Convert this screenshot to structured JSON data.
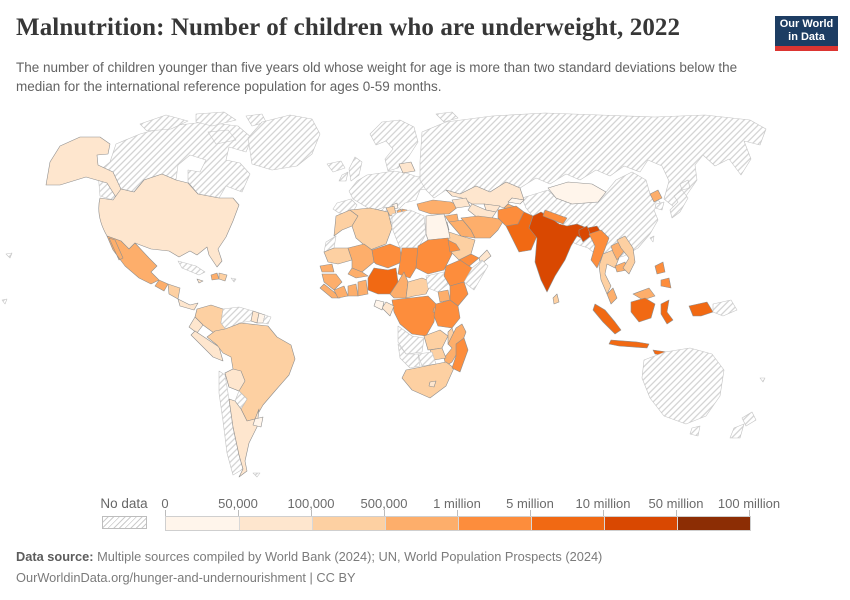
{
  "header": {
    "title": "Malnutrition: Number of children who are underweight, 2022",
    "subtitle": "The number of children younger than five years old whose weight for age is more than two standard deviations below the median for the international reference population for ages 0-59 months."
  },
  "logo": {
    "line1": "Our World",
    "line2": "in Data",
    "bg_color": "#1d3d63",
    "accent_color": "#dc3531"
  },
  "legend": {
    "no_data_label": "No data",
    "tick_labels": [
      "0",
      "50,000",
      "100,000",
      "500,000",
      "1 million",
      "5 million",
      "10 million",
      "50 million",
      "100 million"
    ],
    "bin_colors": [
      "#fff5eb",
      "#fee6ce",
      "#fdd0a2",
      "#fdae6b",
      "#fd8d3c",
      "#f16913",
      "#d94801",
      "#8c2d04"
    ]
  },
  "footer": {
    "source_label": "Data source:",
    "source_text": " Multiple sources compiled by World Bank (2024); UN, World Population Prospects (2024)",
    "link_text": "OurWorldinData.org/hunger-and-undernourishment | CC BY"
  },
  "map": {
    "no_data_value": "x",
    "countries": {
      "united-states": 1,
      "canada": "x",
      "greenland": "x",
      "iceland": "x",
      "mexico": 3,
      "guatemala": 3,
      "honduras-nicaragua": 2,
      "costa-rica-panama": 1,
      "cuba": "x",
      "jamaica": 1,
      "haiti": 3,
      "dominican-republic": 2,
      "puerto-rico": "x",
      "colombia": 2,
      "venezuela": "x",
      "guyana": 1,
      "suriname": 0,
      "french-guiana": "x",
      "ecuador": 1,
      "peru": 1,
      "brazil": 2,
      "bolivia": 1,
      "paraguay": "x",
      "chile": "x",
      "argentina": 1,
      "uruguay": 0,
      "falkland-islands": "x",
      "scandinavia": "x",
      "uk": "x",
      "ireland": "x",
      "europe-mainland": "x",
      "iberia": "x",
      "italy": "x",
      "greece": "x",
      "belarus": 1,
      "bosnia": 0,
      "albania": 3,
      "north-macedonia": 3,
      "svalbard": "x",
      "russia": "x",
      "morocco": 2,
      "western-sahara": "x",
      "algeria": 2,
      "tunisia": 2,
      "libya": "x",
      "egypt": 0,
      "mauritania": 2,
      "mali": 3,
      "burkina-faso": 3,
      "niger": 4,
      "chad": 4,
      "sudan": 4,
      "eritrea": 4,
      "senegal": 3,
      "guinea": 3,
      "sierra-leone-liberia": 3,
      "ivory-coast": 3,
      "ghana": 3,
      "togo-benin": 3,
      "nigeria": 5,
      "cameroon": 3,
      "central-african-republic": 2,
      "south-sudan": "x",
      "ethiopia": 4,
      "somalia": "x",
      "uganda": 3,
      "kenya": 4,
      "drc": 4,
      "congo": 1,
      "gabon": 0,
      "rwanda-burundi": 3,
      "tanzania": 4,
      "angola": "x",
      "zambia": 2,
      "malawi": 2,
      "mozambique": 3,
      "zimbabwe": 2,
      "botswana": "x",
      "namibia": "x",
      "south-africa": 2,
      "lesotho": 1,
      "madagascar": 4,
      "turkey": 3,
      "syria": 3,
      "iraq": 3,
      "iran": 3,
      "jordan": 1,
      "saudi-arabia": 2,
      "yemen": 4,
      "oman": 1,
      "caucasus": 1,
      "kazakhstan": 1,
      "uzbekistan": 1,
      "turkmenistan": 1,
      "kyrgyzstan": 0,
      "tajikistan": 3,
      "afghanistan": 4,
      "pakistan": 5,
      "india": 6,
      "nepal": 4,
      "bangladesh": 6,
      "sri-lanka": 2,
      "mongolia": 0,
      "china": "x",
      "north-korea": 3,
      "south-korea": "x",
      "japan": "x",
      "taiwan": "x",
      "myanmar": 4,
      "thailand": 2,
      "laos": 3,
      "cambodia": 3,
      "vietnam": 2,
      "malaysia": 3,
      "indonesia": 5,
      "philippines": 4,
      "papua-new-guinea": "x",
      "australia": "x",
      "new-zealand": "x",
      "fiji": "x",
      "pacific-islands": "x"
    }
  }
}
